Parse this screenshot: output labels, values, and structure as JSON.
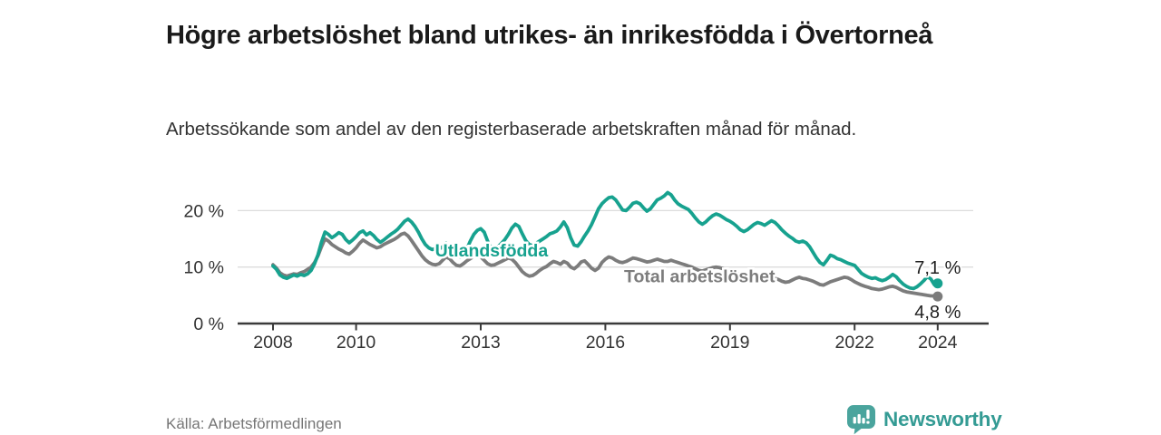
{
  "header": {
    "title": "Högre arbetslöshet bland utrikes- än inrikesfödda i Övertorneå",
    "subtitle": "Arbetssökande som andel av den registerbaserade arbetskraften månad för månad."
  },
  "footer": {
    "source": "Källa: Arbetsförmedlingen",
    "brand": "Newsworthy"
  },
  "colors": {
    "foreign_born_line": "#17a28f",
    "total_line": "#7c7c7c",
    "gridline": "#dcdcdc",
    "axis": "#3a3a3a",
    "tick_text": "#333333",
    "end_label_text": "#1f1f1f",
    "title_text": "#1a1a1a",
    "source_text": "#767676",
    "brand_teal": "#349b94"
  },
  "chart_data": {
    "type": "line",
    "title": "Högre arbetslöshet bland utrikes- än inrikesfödda i Övertorneå",
    "subtitle": "Arbetssökande som andel av den registerbaserade arbetskraften månad för månad.",
    "x_start_year": 2008,
    "points_per_year": 12,
    "x_range": [
      2008,
      2024.08
    ],
    "ylim": [
      0,
      24
    ],
    "grid": "horizontal-only",
    "legend_position": "inline-labels",
    "y_ticks": [
      {
        "value": 20,
        "label": "20 %"
      },
      {
        "value": 10,
        "label": "10 %"
      },
      {
        "value": 0,
        "label": "0 %"
      }
    ],
    "x_ticks": [
      {
        "year": 2008,
        "label": "2008"
      },
      {
        "year": 2010,
        "label": "2010"
      },
      {
        "year": 2013,
        "label": "2013"
      },
      {
        "year": 2016,
        "label": "2016"
      },
      {
        "year": 2019,
        "label": "2019"
      },
      {
        "year": 2022,
        "label": "2022"
      },
      {
        "year": 2024,
        "label": "2024"
      }
    ],
    "series": [
      {
        "name": "Total arbetslöshet",
        "color": "#7c7c7c",
        "end_label": "4,8 %",
        "end_label_side": "below",
        "label_annotation": {
          "year": 2016.45,
          "value": 7.3
        },
        "values": [
          10.4,
          9.8,
          9.0,
          8.6,
          8.4,
          8.6,
          8.8,
          8.7,
          9.0,
          9.2,
          9.6,
          10.0,
          10.8,
          12.0,
          13.6,
          15.0,
          14.6,
          14.0,
          13.6,
          13.2,
          12.9,
          12.5,
          12.3,
          12.8,
          13.4,
          14.2,
          14.8,
          14.4,
          14.0,
          13.7,
          13.4,
          13.6,
          14.0,
          14.3,
          14.6,
          14.9,
          15.3,
          15.8,
          16.0,
          15.5,
          14.7,
          13.8,
          12.9,
          12.0,
          11.3,
          10.8,
          10.5,
          10.4,
          10.6,
          11.2,
          11.8,
          11.5,
          10.8,
          10.3,
          10.2,
          10.6,
          11.1,
          11.5,
          11.9,
          12.1,
          11.8,
          11.2,
          10.6,
          10.3,
          10.4,
          10.7,
          11.0,
          11.3,
          11.6,
          11.4,
          10.8,
          10.0,
          9.2,
          8.7,
          8.4,
          8.5,
          8.9,
          9.4,
          9.8,
          10.1,
          10.6,
          11.0,
          10.8,
          10.5,
          11.0,
          10.7,
          10.0,
          9.7,
          10.2,
          10.9,
          11.1,
          10.5,
          9.8,
          9.4,
          9.8,
          10.8,
          11.4,
          11.8,
          11.6,
          11.2,
          10.9,
          10.8,
          11.0,
          11.3,
          11.6,
          11.5,
          11.3,
          11.1,
          10.9,
          11.0,
          11.2,
          11.4,
          11.2,
          11.0,
          11.0,
          11.2,
          11.0,
          10.8,
          10.6,
          10.4,
          10.2,
          10.0,
          9.7,
          9.4,
          9.3,
          9.5,
          9.7,
          9.9,
          10.0,
          9.9,
          9.7,
          9.6,
          9.5,
          9.2,
          8.9,
          8.6,
          8.4,
          8.3,
          8.2,
          8.3,
          8.1,
          7.9,
          7.8,
          7.9,
          8.1,
          8.0,
          7.8,
          7.5,
          7.3,
          7.4,
          7.7,
          8.0,
          8.2,
          8.0,
          7.9,
          7.7,
          7.5,
          7.2,
          6.9,
          6.8,
          7.1,
          7.4,
          7.6,
          7.8,
          8.0,
          8.2,
          8.1,
          7.8,
          7.4,
          7.1,
          6.8,
          6.6,
          6.4,
          6.2,
          6.1,
          6.0,
          6.1,
          6.3,
          6.5,
          6.6,
          6.4,
          6.1,
          5.8,
          5.6,
          5.5,
          5.4,
          5.3,
          5.2,
          5.1,
          5.0,
          4.9,
          4.9,
          4.8
        ]
      },
      {
        "name": "Utlandsfödda",
        "color": "#17a28f",
        "end_label": "7,1 %",
        "end_label_side": "above",
        "label_annotation": {
          "year": 2011.9,
          "value": 11.9
        },
        "values": [
          10.2,
          9.6,
          8.6,
          8.2,
          8.0,
          8.3,
          8.6,
          8.4,
          8.7,
          8.5,
          8.8,
          9.4,
          10.6,
          12.2,
          14.4,
          16.2,
          15.8,
          15.2,
          15.6,
          16.1,
          15.8,
          14.9,
          14.3,
          14.8,
          15.4,
          16.1,
          16.4,
          15.7,
          16.1,
          15.6,
          14.9,
          14.4,
          14.8,
          15.3,
          15.8,
          16.2,
          16.7,
          17.4,
          18.1,
          18.5,
          18.0,
          17.2,
          16.2,
          15.0,
          14.0,
          13.4,
          13.1,
          13.3,
          13.2,
          13.6,
          14.2,
          13.9,
          12.9,
          12.1,
          11.8,
          12.3,
          13.2,
          14.6,
          15.8,
          16.5,
          16.8,
          16.2,
          14.6,
          13.4,
          13.1,
          13.6,
          14.2,
          14.9,
          15.8,
          16.9,
          17.6,
          17.2,
          15.9,
          14.7,
          14.0,
          13.8,
          14.2,
          14.6,
          15.0,
          15.4,
          15.9,
          16.1,
          16.4,
          17.1,
          18.0,
          17.0,
          15.2,
          13.9,
          13.7,
          14.5,
          15.5,
          16.4,
          17.5,
          18.9,
          20.3,
          21.2,
          21.8,
          22.3,
          22.4,
          21.9,
          21.0,
          20.1,
          20.0,
          20.6,
          21.3,
          21.5,
          21.2,
          20.5,
          19.9,
          20.3,
          21.1,
          21.9,
          22.2,
          22.6,
          23.2,
          22.8,
          21.9,
          21.2,
          20.8,
          20.5,
          20.2,
          19.5,
          18.7,
          18.0,
          17.6,
          18.0,
          18.6,
          19.1,
          19.4,
          19.2,
          18.8,
          18.4,
          18.1,
          17.7,
          17.2,
          16.6,
          16.3,
          16.6,
          17.1,
          17.6,
          17.9,
          17.7,
          17.4,
          17.8,
          18.2,
          17.9,
          17.3,
          16.6,
          16.0,
          15.5,
          15.1,
          14.6,
          14.4,
          14.6,
          14.3,
          13.6,
          12.6,
          11.6,
          10.8,
          10.4,
          11.2,
          12.1,
          11.9,
          11.5,
          11.3,
          11.0,
          10.7,
          10.5,
          10.3,
          9.6,
          8.9,
          8.5,
          8.2,
          8.0,
          8.1,
          7.8,
          7.6,
          7.8,
          8.2,
          8.7,
          8.3,
          7.6,
          7.0,
          6.6,
          6.3,
          6.2,
          6.5,
          7.0,
          7.6,
          8.3,
          7.9,
          6.9,
          7.1
        ]
      }
    ]
  }
}
